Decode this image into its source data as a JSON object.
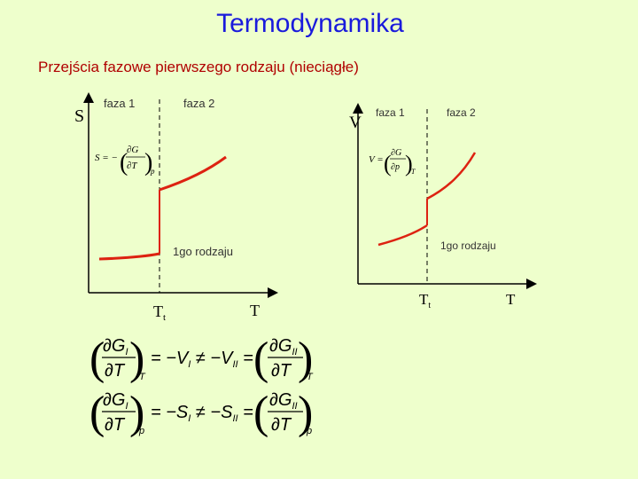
{
  "header": {
    "title": "Termodynamika",
    "subtitle": "Przejścia fazowe pierwszego rodzaju (nieciągłe)"
  },
  "left_plot": {
    "y_axis": "S",
    "x_axis": "T",
    "x_mark": "T",
    "x_mark_sub": "t",
    "phase1": "faza 1",
    "phase2": "faza 2",
    "transition": "1go rodzaju",
    "def_lhs": "S = −",
    "def_num": "∂G",
    "def_den": "∂T",
    "def_sub": "p"
  },
  "right_plot": {
    "y_axis": "V",
    "x_axis": "T",
    "x_mark": "T",
    "x_mark_sub": "t",
    "phase1": "faza 1",
    "phase2": "faza 2",
    "transition": "1go rodzaju",
    "def_lhs": "V =",
    "def_num": "∂G",
    "def_den": "∂p",
    "def_sub": "T"
  },
  "formulas": [
    {
      "num_l": "∂G",
      "num_l_sub": "I",
      "den_l": "∂T",
      "sub_l": "T",
      "middle": "= −V",
      "mid_sub1": "I",
      "neq": "≠ −V",
      "mid_sub2": "II",
      "eq": "=",
      "num_r": "∂G",
      "num_r_sub": "II",
      "den_r": "∂T",
      "sub_r": "T"
    },
    {
      "num_l": "∂G",
      "num_l_sub": "I",
      "den_l": "∂T",
      "sub_l": "p",
      "middle": "= −S",
      "mid_sub1": "I",
      "neq": "≠ −S",
      "mid_sub2": "II",
      "eq": "=",
      "num_r": "∂G",
      "num_r_sub": "II",
      "den_r": "∂T",
      "sub_r": "p"
    }
  ],
  "colors": {
    "title": "#1a1adc",
    "subtitle": "#b00000",
    "curve": "#dd2211",
    "background": "#eeffcc"
  }
}
